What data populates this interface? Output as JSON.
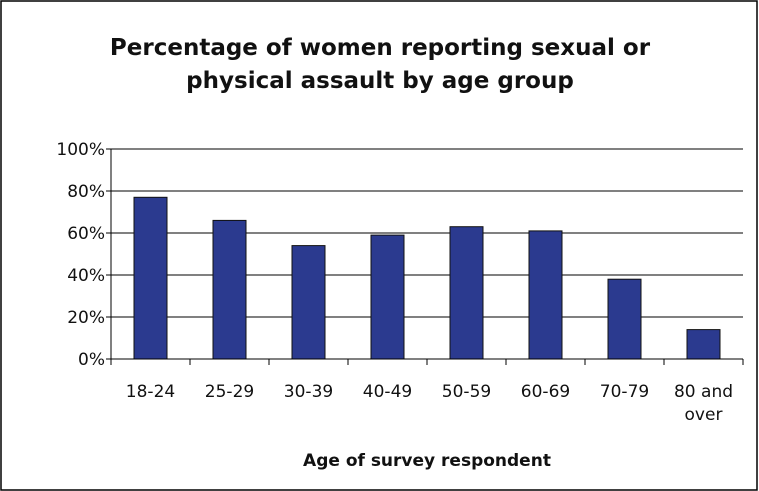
{
  "chart_data": {
    "type": "bar",
    "title_lines": [
      "Percentage of women reporting sexual or",
      "physical assault by age group"
    ],
    "categories": [
      "18-24",
      "25-29",
      "30-39",
      "40-49",
      "50-59",
      "60-69",
      "70-79",
      "80 and over"
    ],
    "category_lines": [
      [
        "18-24"
      ],
      [
        "25-29"
      ],
      [
        "30-39"
      ],
      [
        "40-49"
      ],
      [
        "50-59"
      ],
      [
        "60-69"
      ],
      [
        "70-79"
      ],
      [
        "80 and",
        "over"
      ]
    ],
    "values": [
      77,
      66,
      54,
      59,
      63,
      61,
      38,
      14
    ],
    "value_unit": "%",
    "xlabel": "Age of survey respondent",
    "ylabel": "",
    "ylim": [
      0,
      100
    ],
    "yticks": [
      "0%",
      "20%",
      "40%",
      "60%",
      "80%",
      "100%"
    ],
    "ytick_values": [
      0,
      20,
      40,
      60,
      80,
      100
    ],
    "grid": true,
    "legend": "none",
    "colors": {
      "bar_fill": "#2B3A8F",
      "bar_stroke": "#111111",
      "grid": "#000000",
      "frame": "#000000"
    }
  }
}
